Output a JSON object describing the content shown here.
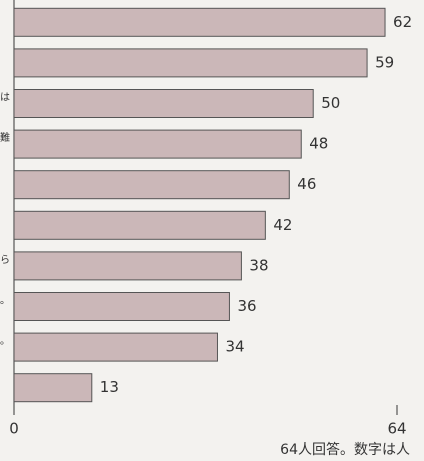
{
  "chart_data": {
    "type": "hbar",
    "categories": [
      null,
      null,
      "は",
      "難",
      null,
      null,
      "ら",
      "。",
      "。",
      null
    ],
    "values": [
      62,
      59,
      50,
      48,
      46,
      42,
      38,
      36,
      34,
      13
    ],
    "color": "#cbb7b8",
    "xlim": [
      0,
      64
    ],
    "xticks": [
      0,
      64
    ],
    "annotation": "64人回答。数字は人"
  }
}
